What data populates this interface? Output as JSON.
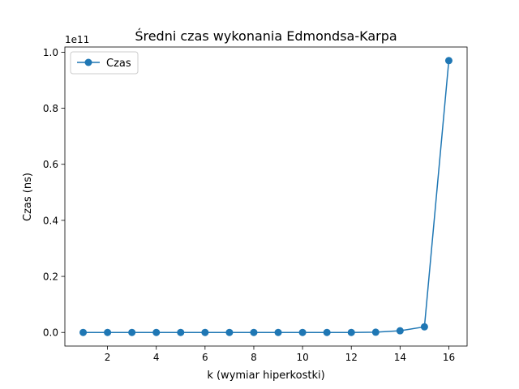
{
  "chart_data": {
    "type": "line",
    "title": "Średni czas wykonania Edmondsa-Karpa",
    "xlabel": "k (wymiar hiperkostki)",
    "ylabel": "Czas (ns)",
    "y_offset_label": "1e11",
    "y_scale": 100000000000.0,
    "xlim": [
      0.25,
      16.75
    ],
    "ylim": [
      -0.0485,
      1.0185
    ],
    "x_ticks": [
      2,
      4,
      6,
      8,
      10,
      12,
      14,
      16
    ],
    "x_tick_labels": [
      "2",
      "4",
      "6",
      "8",
      "10",
      "12",
      "14",
      "16"
    ],
    "y_ticks": [
      0.0,
      0.2,
      0.4,
      0.6,
      0.8,
      1.0
    ],
    "y_tick_labels": [
      "0.0",
      "0.2",
      "0.4",
      "0.6",
      "0.8",
      "1.0"
    ],
    "grid": false,
    "legend_position": "upper left",
    "series": [
      {
        "name": "Czas",
        "color": "#1f77b4",
        "marker": "circle",
        "x": [
          1,
          2,
          3,
          4,
          5,
          6,
          7,
          8,
          9,
          10,
          11,
          12,
          13,
          14,
          15,
          16
        ],
        "y": [
          0.0,
          0.0,
          0.0,
          0.0,
          0.0,
          0.0,
          0.0,
          0.0,
          0.0,
          0.0,
          0.0,
          0.0,
          0.001,
          0.006,
          0.02,
          0.97
        ]
      }
    ]
  }
}
